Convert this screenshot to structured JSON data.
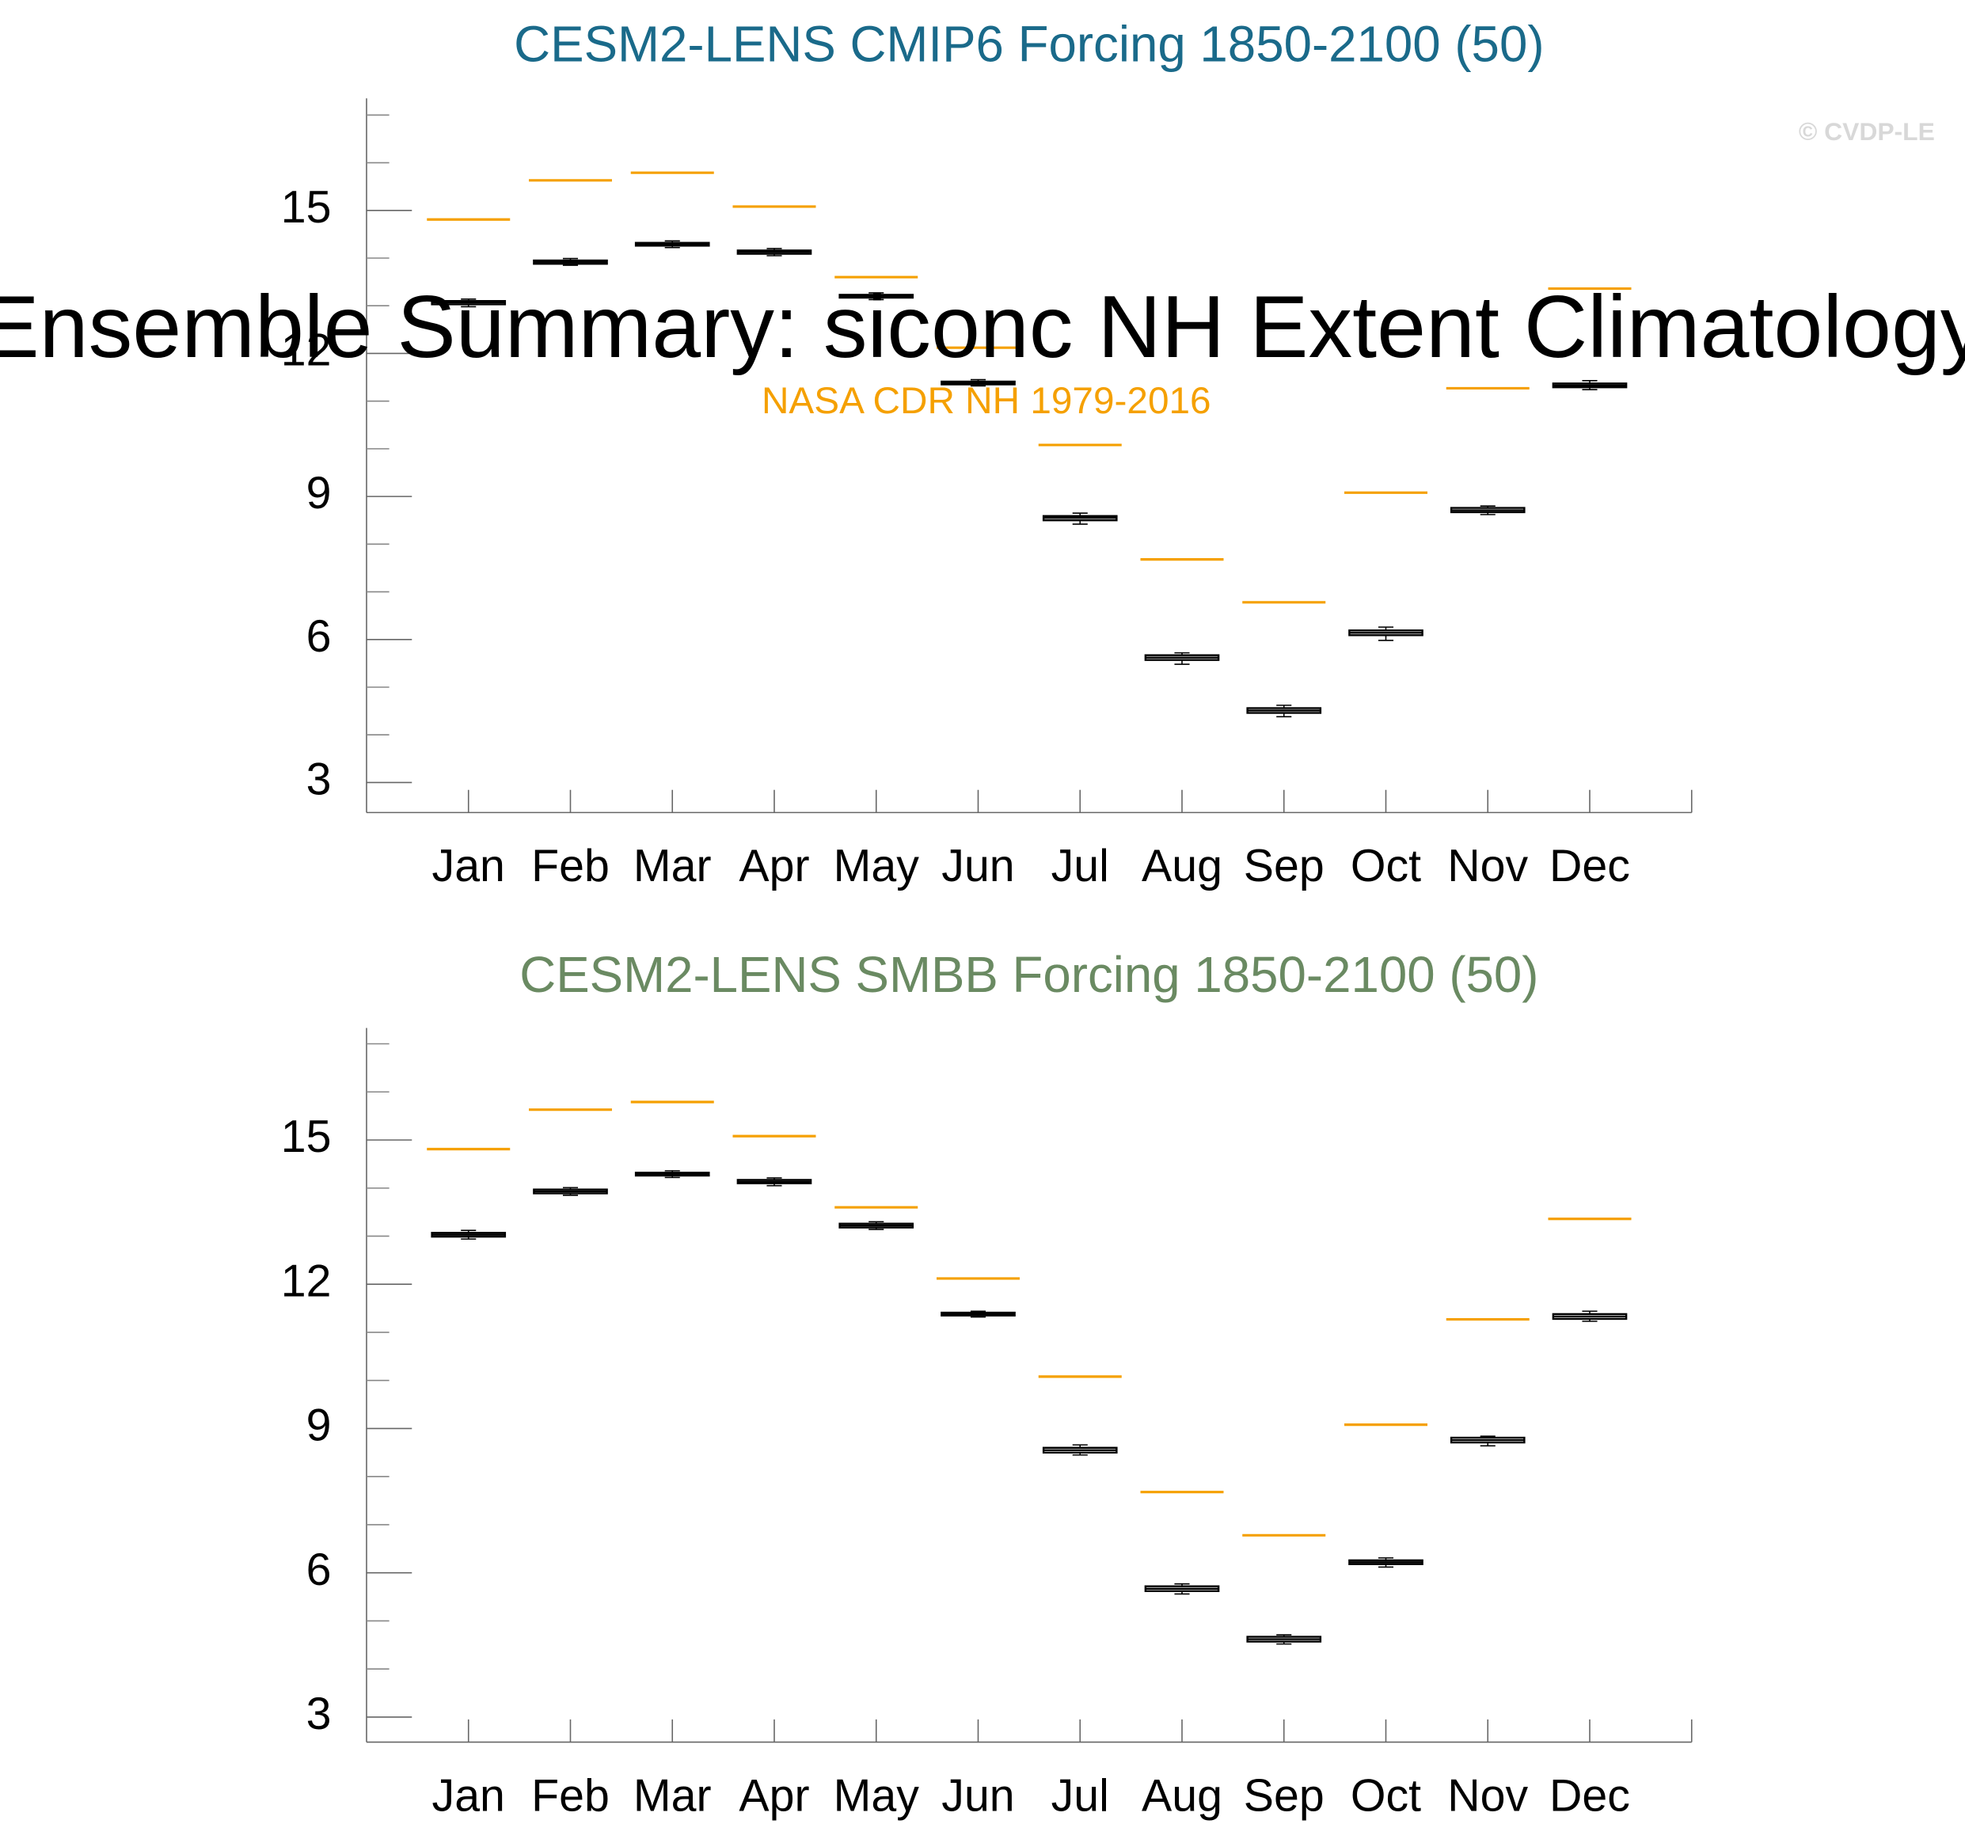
{
  "title": "Ensemble Summary: siconc NH Extent Climatology",
  "reference": {
    "name": "NASA CDR NH 1979-2016",
    "color": "#f5a000"
  },
  "credit": "© CVDP-LE",
  "chart_data": [
    {
      "type": "box",
      "title": "CESM2-LENS CMIP6 Forcing 1850-2100 (50)",
      "title_color": "#1a6a8a",
      "categories": [
        "Jan",
        "Feb",
        "Mar",
        "Apr",
        "May",
        "Jun",
        "Jul",
        "Aug",
        "Sep",
        "Oct",
        "Nov",
        "Dec"
      ],
      "whisker_low": [
        12.98,
        13.85,
        14.22,
        14.05,
        13.13,
        11.32,
        8.42,
        5.48,
        4.38,
        5.98,
        8.62,
        11.24
      ],
      "q1": [
        13.03,
        13.88,
        14.26,
        14.09,
        13.17,
        11.35,
        8.5,
        5.57,
        4.46,
        6.09,
        8.67,
        11.29
      ],
      "median": [
        13.07,
        13.92,
        14.29,
        14.13,
        13.2,
        11.38,
        8.55,
        5.62,
        4.51,
        6.14,
        8.71,
        11.33
      ],
      "q3": [
        13.1,
        13.95,
        14.32,
        14.16,
        13.23,
        11.41,
        8.59,
        5.67,
        4.56,
        6.19,
        8.76,
        11.37
      ],
      "whisker_high": [
        13.14,
        13.99,
        14.36,
        14.2,
        13.27,
        11.45,
        8.65,
        5.72,
        4.62,
        6.26,
        8.8,
        11.43
      ],
      "reference_values": [
        14.81,
        15.63,
        15.79,
        15.08,
        13.6,
        12.12,
        10.08,
        7.68,
        6.78,
        9.08,
        11.27,
        13.36
      ],
      "ylim": [
        2.37,
        17.35
      ],
      "yticks": [
        3,
        6,
        9,
        12,
        15
      ],
      "yminorticks": [
        4,
        5,
        7,
        8,
        10,
        11,
        13,
        14,
        16,
        17
      ]
    },
    {
      "type": "box",
      "title": "CESM2-LENS SMBB Forcing 1850-2100 (50)",
      "title_color": "#6a8a62",
      "categories": [
        "Jan",
        "Feb",
        "Mar",
        "Apr",
        "May",
        "Jun",
        "Jul",
        "Aug",
        "Sep",
        "Oct",
        "Nov",
        "Dec"
      ],
      "whisker_low": [
        12.94,
        13.85,
        14.22,
        14.05,
        13.14,
        11.32,
        8.45,
        5.56,
        4.52,
        6.12,
        8.64,
        11.23
      ],
      "q1": [
        12.99,
        13.89,
        14.26,
        14.1,
        13.18,
        11.35,
        8.5,
        5.62,
        4.57,
        6.18,
        8.71,
        11.28
      ],
      "median": [
        13.03,
        13.93,
        14.29,
        14.13,
        13.22,
        11.38,
        8.55,
        5.67,
        4.62,
        6.22,
        8.76,
        11.33
      ],
      "q3": [
        13.07,
        13.97,
        14.32,
        14.17,
        13.26,
        11.41,
        8.6,
        5.72,
        4.67,
        6.26,
        8.81,
        11.38
      ],
      "whisker_high": [
        13.12,
        14.01,
        14.36,
        14.21,
        13.3,
        11.44,
        8.66,
        5.77,
        4.71,
        6.31,
        8.84,
        11.44
      ],
      "reference_values": [
        14.81,
        15.63,
        15.79,
        15.08,
        13.6,
        12.12,
        10.08,
        7.68,
        6.78,
        9.08,
        11.27,
        13.36
      ],
      "ylim": [
        2.48,
        17.33
      ],
      "yticks": [
        3,
        6,
        9,
        12,
        15
      ],
      "yminorticks": [
        4,
        5,
        7,
        8,
        10,
        11,
        13,
        14,
        16,
        17
      ]
    }
  ]
}
